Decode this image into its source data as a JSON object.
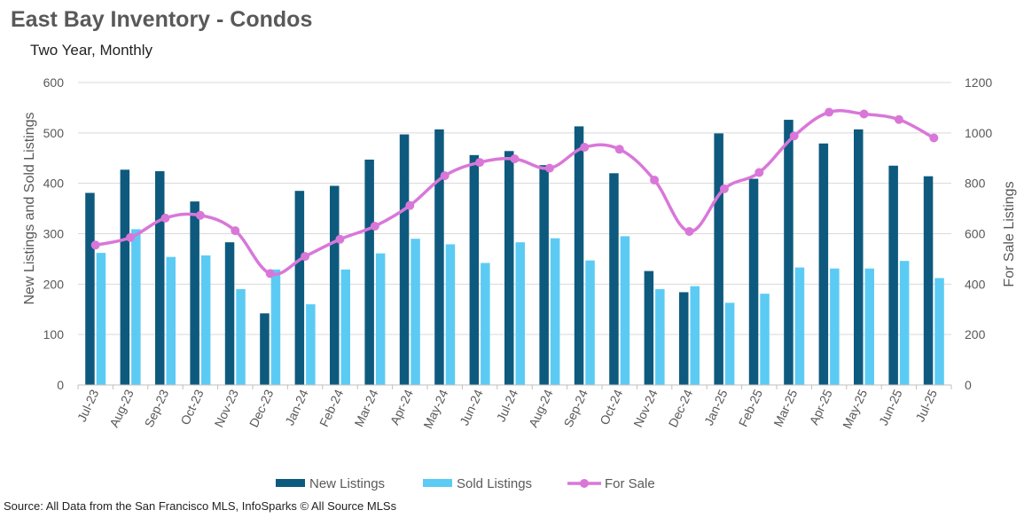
{
  "chart_data": {
    "type": "bar",
    "title": "East Bay Inventory - Condos",
    "subtitle": "Two Year, Monthly",
    "ylabel": "New Listings and Sold Listings",
    "y2label": "For Sale Listings",
    "ylim": [
      0,
      600
    ],
    "y2lim": [
      0,
      1200
    ],
    "yticks": [
      0,
      100,
      200,
      300,
      400,
      500,
      600
    ],
    "y2ticks": [
      0,
      200,
      400,
      600,
      800,
      1000,
      1200
    ],
    "grid": true,
    "legend_position": "bottom",
    "categories": [
      "Jul-23",
      "Aug-23",
      "Sep-23",
      "Oct-23",
      "Nov-23",
      "Dec-23",
      "Jan-24",
      "Feb-24",
      "Mar-24",
      "Apr-24",
      "May-24",
      "Jun-24",
      "Jul-24",
      "Aug-24",
      "Sep-24",
      "Oct-24",
      "Nov-24",
      "Dec-24",
      "Jan-25",
      "Feb-25",
      "Mar-25",
      "Apr-25",
      "May-25",
      "Jun-25",
      "Jul-25"
    ],
    "series": [
      {
        "name": "New Listings",
        "type": "bar",
        "axis": "left",
        "color": "#0e5a7e",
        "values": [
          381,
          427,
          424,
          364,
          283,
          142,
          385,
          395,
          447,
          497,
          507,
          456,
          464,
          436,
          513,
          420,
          226,
          184,
          499,
          409,
          526,
          479,
          507,
          435,
          414
        ]
      },
      {
        "name": "Sold Listings",
        "type": "bar",
        "axis": "left",
        "color": "#5ccbf4",
        "values": [
          262,
          309,
          254,
          257,
          190,
          229,
          160,
          229,
          261,
          290,
          279,
          242,
          283,
          291,
          247,
          295,
          190,
          196,
          163,
          181,
          233,
          231,
          231,
          246,
          212
        ]
      },
      {
        "name": "For Sale",
        "type": "line",
        "axis": "right",
        "color": "#d977d9",
        "values": [
          555,
          585,
          662,
          673,
          612,
          442,
          510,
          578,
          630,
          712,
          830,
          883,
          897,
          860,
          943,
          935,
          813,
          609,
          778,
          843,
          988,
          1082,
          1075,
          1053,
          980
        ]
      }
    ],
    "source": "Source: All Data from the San Francisco MLS, InfoSparks © All Source MLSs"
  }
}
